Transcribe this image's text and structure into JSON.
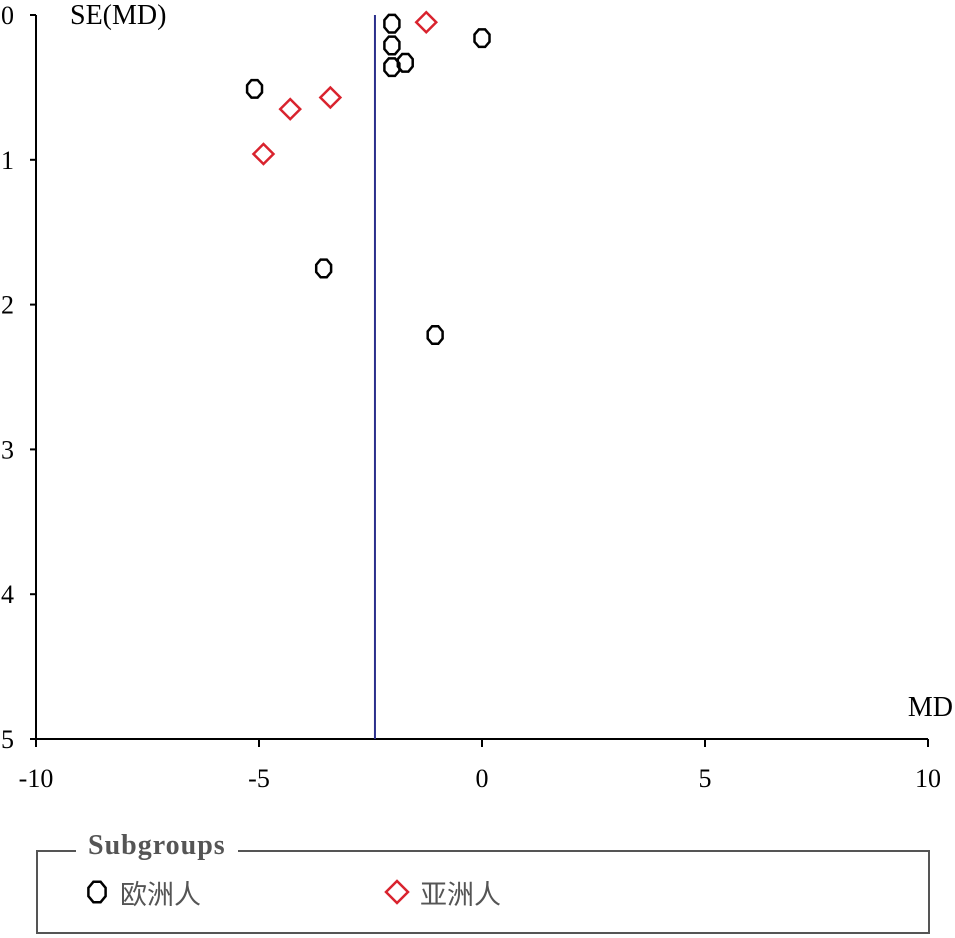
{
  "chart_data": {
    "type": "scatter",
    "title": "",
    "xlabel": "MD",
    "ylabel": "SE(MD)",
    "xlim": [
      -10,
      10
    ],
    "ylim": [
      0,
      5
    ],
    "y_inverted": true,
    "x_ticks": [
      "-10",
      "-5",
      "0",
      "5",
      "10"
    ],
    "y_ticks": [
      "0",
      "1",
      "2",
      "3",
      "4",
      "5"
    ],
    "reference_line_x": -2.4,
    "series": [
      {
        "name": "欧洲人",
        "marker": "octagon",
        "color": "#000000",
        "points": [
          {
            "x": -2.02,
            "y": 0.06
          },
          {
            "x": -2.02,
            "y": 0.21
          },
          {
            "x": 0.0,
            "y": 0.16
          },
          {
            "x": -1.72,
            "y": 0.33
          },
          {
            "x": -2.02,
            "y": 0.36
          },
          {
            "x": -5.1,
            "y": 0.51
          },
          {
            "x": -3.55,
            "y": 1.75
          },
          {
            "x": -1.05,
            "y": 2.21
          }
        ]
      },
      {
        "name": "亚洲人",
        "marker": "diamond",
        "color": "#d9232e",
        "points": [
          {
            "x": -1.25,
            "y": 0.05
          },
          {
            "x": -3.4,
            "y": 0.57
          },
          {
            "x": -4.3,
            "y": 0.65
          },
          {
            "x": -4.9,
            "y": 0.96
          }
        ]
      }
    ]
  },
  "legend": {
    "title": "Subgroups",
    "items": [
      {
        "label": "欧洲人",
        "marker": "octagon",
        "color": "#000000"
      },
      {
        "label": "亚洲人",
        "marker": "diamond",
        "color": "#d9232e"
      }
    ]
  },
  "colors": {
    "axis": "#000000",
    "reference_line": "#2b2f8c",
    "legend_frame": "#555555"
  }
}
